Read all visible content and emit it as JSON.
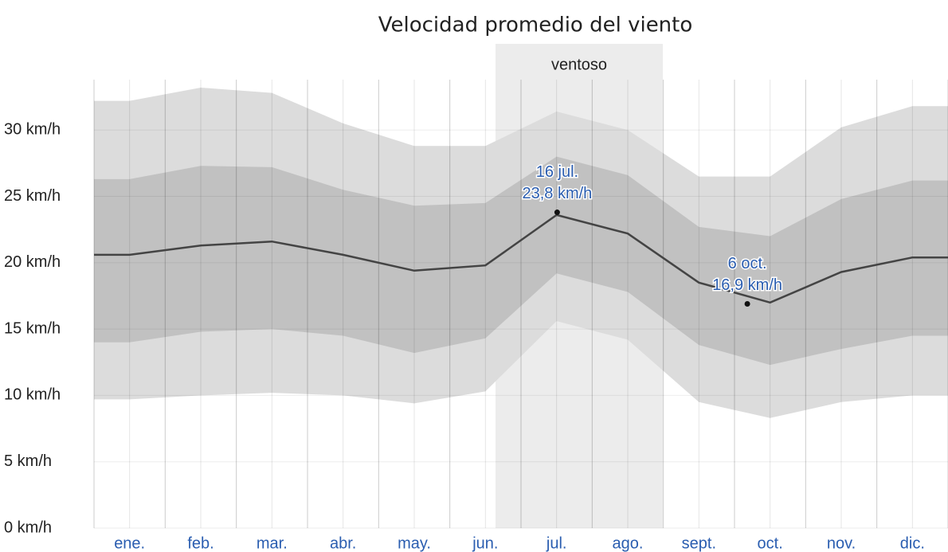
{
  "chart_data": {
    "type": "line",
    "title": "Velocidad promedio del viento",
    "categories": [
      "ene.",
      "feb.",
      "mar.",
      "abr.",
      "may.",
      "jun.",
      "jul.",
      "ago.",
      "sept.",
      "oct.",
      "nov.",
      "dic."
    ],
    "bands": [
      {
        "color": "#dcdcdc",
        "low": [
          9.7,
          10.0,
          10.2,
          10.0,
          9.4,
          10.3,
          15.6,
          14.2,
          9.5,
          8.3,
          9.5,
          10.0
        ],
        "high": [
          32.2,
          33.2,
          32.8,
          30.5,
          28.8,
          28.8,
          31.4,
          30.0,
          26.5,
          26.5,
          30.2,
          31.8
        ]
      },
      {
        "color": "#c1c1c1",
        "low": [
          14.0,
          14.8,
          15.0,
          14.5,
          13.2,
          14.3,
          19.2,
          17.8,
          13.8,
          12.3,
          13.5,
          14.5
        ],
        "high": [
          26.3,
          27.3,
          27.2,
          25.5,
          24.3,
          24.5,
          28.0,
          26.6,
          22.7,
          22.0,
          24.8,
          26.2
        ]
      }
    ],
    "series": [
      {
        "color": "#444444",
        "values": [
          20.6,
          21.3,
          21.6,
          20.6,
          19.4,
          19.8,
          23.6,
          22.2,
          18.5,
          17.0,
          19.3,
          20.4
        ]
      }
    ],
    "ylim": [
      0,
      36.5
    ],
    "yticks": [
      {
        "value": 0,
        "label": "0 km/h"
      },
      {
        "value": 5,
        "label": "5 km/h"
      },
      {
        "value": 10,
        "label": "10 km/h"
      },
      {
        "value": 15,
        "label": "15 km/h"
      },
      {
        "value": 20,
        "label": "20 km/h"
      },
      {
        "value": 25,
        "label": "25 km/h"
      },
      {
        "value": 30,
        "label": "30 km/h"
      }
    ],
    "grid": true,
    "highlight": {
      "label": "ventoso"
    },
    "annotations": [
      {
        "label": "16 jul.",
        "value": 23.8,
        "value_label": "23,8 km/h"
      },
      {
        "label": "6 oct.",
        "value": 16.9,
        "value_label": "16,9 km/h"
      }
    ]
  }
}
